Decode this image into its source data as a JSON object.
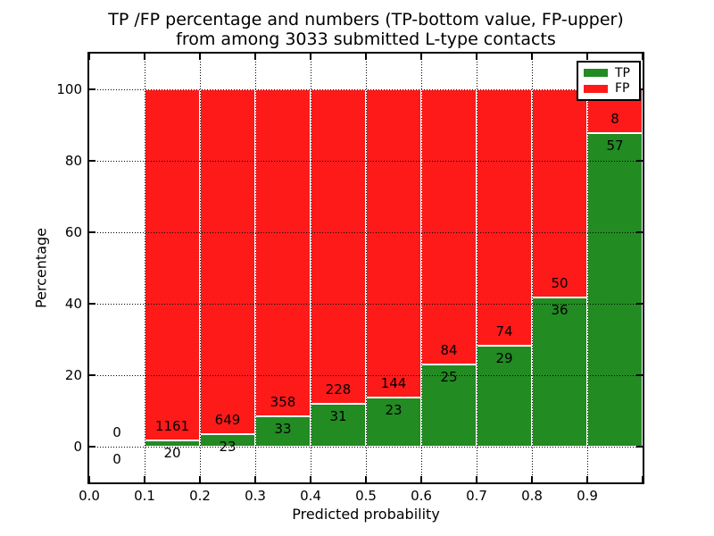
{
  "title": {
    "line1": "TP /FP percentage and numbers (TP-bottom value, FP-upper)",
    "line2": "from among 3033 submitted L-type contacts"
  },
  "axes": {
    "x_label": "Predicted probability",
    "y_label": "Percentage",
    "x_tick_labels": [
      "0.0",
      "0.1",
      "0.2",
      "0.3",
      "0.4",
      "0.5",
      "0.6",
      "0.7",
      "0.8",
      "0.9"
    ],
    "y_tick_labels": [
      "0",
      "20",
      "40",
      "60",
      "80",
      "100"
    ],
    "y_tick_values": [
      0,
      20,
      40,
      60,
      80,
      100
    ],
    "xlim": [
      0.0,
      1.0
    ],
    "ylim": [
      -10,
      110
    ],
    "grid": true
  },
  "legend": {
    "position": "upper right",
    "items": [
      {
        "label": "TP",
        "color": "#228b22"
      },
      {
        "label": "FP",
        "color": "#ff1a1a"
      }
    ]
  },
  "chart_data": {
    "type": "bar",
    "stacked": true,
    "normalized": "each bar scaled to 100%; segment height = count/(tp+fp)*100",
    "title": "TP /FP percentage and numbers (TP-bottom value, FP-upper)\nfrom among 3033 submitted L-type contacts",
    "xlabel": "Predicted probability",
    "ylabel": "Percentage",
    "xlim": [
      0.0,
      1.0
    ],
    "ylim": [
      -10,
      110
    ],
    "total_contacts": 3033,
    "colors": {
      "tp": "#228b22",
      "fp": "#ff1a1a",
      "bar_edge": "#ffffff"
    },
    "bins": [
      {
        "x_range": [
          0.0,
          0.1
        ],
        "tp": 0,
        "fp": 0,
        "has_bar": false
      },
      {
        "x_range": [
          0.1,
          0.2
        ],
        "tp": 20,
        "fp": 1161,
        "has_bar": true
      },
      {
        "x_range": [
          0.2,
          0.3
        ],
        "tp": 23,
        "fp": 649,
        "has_bar": true
      },
      {
        "x_range": [
          0.3,
          0.4
        ],
        "tp": 33,
        "fp": 358,
        "has_bar": true
      },
      {
        "x_range": [
          0.4,
          0.5
        ],
        "tp": 31,
        "fp": 228,
        "has_bar": true
      },
      {
        "x_range": [
          0.5,
          0.6
        ],
        "tp": 23,
        "fp": 144,
        "has_bar": true
      },
      {
        "x_range": [
          0.6,
          0.7
        ],
        "tp": 25,
        "fp": 84,
        "has_bar": true
      },
      {
        "x_range": [
          0.7,
          0.8
        ],
        "tp": 29,
        "fp": 74,
        "has_bar": true
      },
      {
        "x_range": [
          0.8,
          0.9
        ],
        "tp": 36,
        "fp": 50,
        "has_bar": true
      },
      {
        "x_range": [
          0.9,
          1.0
        ],
        "tp": 57,
        "fp": 8,
        "has_bar": true
      }
    ]
  }
}
